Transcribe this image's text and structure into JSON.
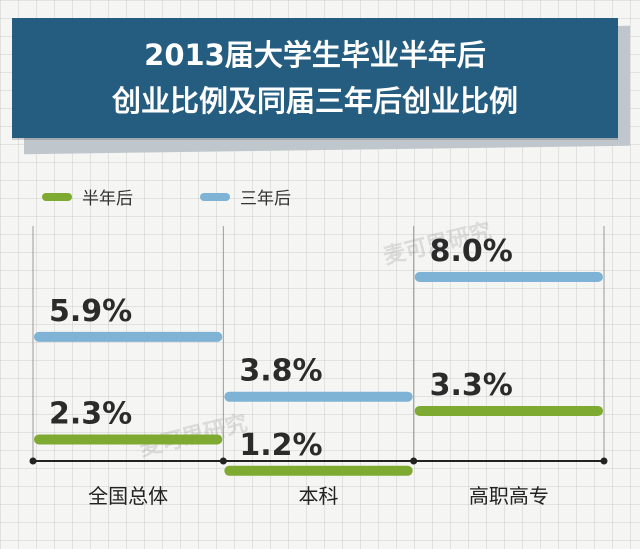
{
  "title": {
    "line1": "2013届大学生毕业半年后",
    "line2": "创业比例及同届三年后创业比例"
  },
  "watermark": "麦可思研究",
  "colors": {
    "banner": "#245d80",
    "half_year": "#7faa32",
    "three_year": "#7fb3d6"
  },
  "chart_data": {
    "type": "bar",
    "orientation": "horizontal-segments",
    "categories": [
      "全国总体",
      "本科",
      "高职高专"
    ],
    "series": [
      {
        "name": "半年后",
        "values": [
          2.3,
          1.2,
          3.3
        ],
        "labels": [
          "2.3%",
          "1.2%",
          "3.3%"
        ]
      },
      {
        "name": "三年后",
        "values": [
          5.9,
          3.8,
          8.0
        ],
        "labels": [
          "5.9%",
          "3.8%",
          "8.0%"
        ]
      }
    ],
    "legend_position": "top-left",
    "grid": true
  }
}
